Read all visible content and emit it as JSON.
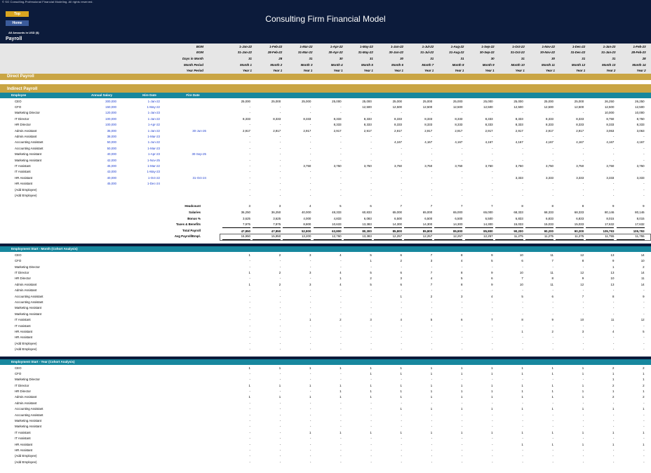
{
  "header": {
    "copyright": "© SG Consulting-Professional Financial Modeling. All rights reserved.",
    "top_button": "Top",
    "home_button": "Home",
    "title": "Consulting Firm Financial Model",
    "amounts_note": "All Amounts in  USD ($)"
  },
  "section_title": "Payroll",
  "timeline": {
    "row_labels": [
      "BOM",
      "EOM",
      "Days in Month",
      "Month Period",
      "Year Period"
    ],
    "bom": [
      "1-Jan-22",
      "1-Feb-22",
      "1-Mar-22",
      "1-Apr-22",
      "1-May-22",
      "1-Jun-22",
      "1-Jul-22",
      "1-Aug-22",
      "1-Sep-22",
      "1-Oct-22",
      "1-Nov-22",
      "1-Dec-22",
      "1-Jan-23",
      "1-Feb-23"
    ],
    "eom": [
      "31-Jan-22",
      "28-Feb-22",
      "31-Mar-22",
      "30-Apr-22",
      "31-May-22",
      "30-Jun-22",
      "31-Jul-22",
      "31-Aug-22",
      "30-Sep-22",
      "31-Oct-22",
      "30-Nov-22",
      "31-Dec-22",
      "31-Jan-23",
      "28-Feb-23"
    ],
    "days": [
      "31",
      "28",
      "31",
      "30",
      "31",
      "30",
      "31",
      "31",
      "30",
      "31",
      "30",
      "31",
      "31",
      "28"
    ],
    "month_period": [
      "Month 1",
      "Month 2",
      "Month 3",
      "Month 4",
      "Month 5",
      "Month 6",
      "Month 7",
      "Month 8",
      "Month 9",
      "Month 10",
      "Month 11",
      "Month 12",
      "Month 13",
      "Month 14"
    ],
    "year_period": [
      "Year 1",
      "Year 1",
      "Year 1",
      "Year 1",
      "Year 1",
      "Year 1",
      "Year 1",
      "Year 1",
      "Year 1",
      "Year 1",
      "Year 1",
      "Year 1",
      "Year 2",
      "Year 2"
    ]
  },
  "direct_payroll_label": "Direct Payroll",
  "indirect_payroll_label": "Indirect Payroll",
  "columns": {
    "employee": "Employee",
    "salary": "Annual Salary",
    "hire": "Hire Date",
    "fire": "Fire Date"
  },
  "employees": [
    {
      "name": "CEO",
      "salary": "300,000",
      "hire": "1-Jan-22",
      "fire": "",
      "values": [
        "25,000",
        "25,000",
        "25,000",
        "25,000",
        "25,000",
        "25,000",
        "25,000",
        "25,000",
        "25,000",
        "25,000",
        "25,000",
        "25,000",
        "26,250",
        "26,250"
      ]
    },
    {
      "name": "CFO",
      "salary": "150,000",
      "hire": "1-May-22",
      "fire": "",
      "values": [
        "-",
        "-",
        "-",
        "-",
        "12,500",
        "12,500",
        "12,500",
        "12,500",
        "12,500",
        "12,500",
        "12,500",
        "12,500",
        "12,500",
        "12,500"
      ]
    },
    {
      "name": "Marketing Director",
      "salary": "120,000",
      "hire": "1-Jan-23",
      "fire": "",
      "values": [
        "-",
        "-",
        "-",
        "-",
        "-",
        "-",
        "-",
        "-",
        "-",
        "-",
        "-",
        "-",
        "10,000",
        "10,000"
      ]
    },
    {
      "name": "IT Director",
      "salary": "100,000",
      "hire": "1-Jan-22",
      "fire": "",
      "values": [
        "8,333",
        "8,333",
        "8,333",
        "8,333",
        "8,333",
        "8,333",
        "8,333",
        "8,333",
        "8,333",
        "8,333",
        "8,333",
        "8,333",
        "8,750",
        "8,750"
      ]
    },
    {
      "name": "HR Director",
      "salary": "100,000",
      "hire": "1-Apr-22",
      "fire": "",
      "values": [
        "-",
        "-",
        "-",
        "8,333",
        "8,333",
        "8,333",
        "8,333",
        "8,333",
        "8,333",
        "8,333",
        "8,333",
        "8,333",
        "8,333",
        "8,333"
      ]
    },
    {
      "name": "Admin Assistant",
      "salary": "35,000",
      "hire": "1-Jan-22",
      "fire": "30-Jun-26",
      "values": [
        "2,917",
        "2,917",
        "2,917",
        "2,917",
        "2,917",
        "2,917",
        "2,917",
        "2,917",
        "2,917",
        "2,917",
        "2,917",
        "2,917",
        "3,063",
        "3,063"
      ]
    },
    {
      "name": "Admin Assistant",
      "salary": "38,000",
      "hire": "1-Mar-23",
      "fire": "",
      "values": [
        "-",
        "-",
        "-",
        "-",
        "-",
        "-",
        "-",
        "-",
        "-",
        "-",
        "-",
        "-",
        "-",
        "-"
      ]
    },
    {
      "name": "Accounting Assistant",
      "salary": "50,000",
      "hire": "1-Jun-22",
      "fire": "",
      "values": [
        "-",
        "-",
        "-",
        "-",
        "-",
        "4,167",
        "4,167",
        "4,167",
        "4,167",
        "4,167",
        "4,167",
        "4,167",
        "4,167",
        "4,167"
      ]
    },
    {
      "name": "Accounting Assistant",
      "salary": "50,000",
      "hire": "1-Mar-23",
      "fire": "",
      "values": [
        "-",
        "-",
        "-",
        "-",
        "-",
        "-",
        "-",
        "-",
        "-",
        "-",
        "-",
        "-",
        "-",
        "-"
      ]
    },
    {
      "name": "Marketing Assistant",
      "salary": "40,000",
      "hire": "1-Apr-23",
      "fire": "30-Sep-25",
      "values": [
        "-",
        "-",
        "-",
        "-",
        "-",
        "-",
        "-",
        "-",
        "-",
        "-",
        "-",
        "-",
        "-",
        "-"
      ]
    },
    {
      "name": "Marketing Assistant",
      "salary": "42,000",
      "hire": "1-Nov-25",
      "fire": "",
      "values": [
        "-",
        "-",
        "-",
        "-",
        "-",
        "-",
        "-",
        "-",
        "-",
        "-",
        "-",
        "-",
        "-",
        "-"
      ]
    },
    {
      "name": "IT Assistant",
      "salary": "45,000",
      "hire": "1-Mar-22",
      "fire": "",
      "values": [
        "-",
        "-",
        "3,750",
        "3,750",
        "3,750",
        "3,750",
        "3,750",
        "3,750",
        "3,750",
        "3,750",
        "3,750",
        "3,750",
        "3,750",
        "3,750"
      ]
    },
    {
      "name": "IT Assistant",
      "salary": "43,000",
      "hire": "1-May-23",
      "fire": "",
      "values": [
        "-",
        "-",
        "-",
        "-",
        "-",
        "-",
        "-",
        "-",
        "-",
        "-",
        "-",
        "-",
        "-",
        "-"
      ]
    },
    {
      "name": "HR Assistant",
      "salary": "40,000",
      "hire": "1-Oct-22",
      "fire": "31-Oct-24",
      "values": [
        "-",
        "-",
        "-",
        "-",
        "-",
        "-",
        "-",
        "-",
        "-",
        "3,333",
        "3,333",
        "3,333",
        "3,333",
        "3,333"
      ]
    },
    {
      "name": "HR Assistant",
      "salary": "45,000",
      "hire": "1-Dec-24",
      "fire": "",
      "values": [
        "-",
        "-",
        "-",
        "-",
        "-",
        "-",
        "-",
        "-",
        "-",
        "-",
        "-",
        "-",
        "-",
        "-"
      ]
    },
    {
      "name": "(Add Employee)",
      "salary": "",
      "hire": "",
      "fire": "",
      "values": [
        "-",
        "-",
        "-",
        "-",
        "-",
        "-",
        "-",
        "-",
        "-",
        "-",
        "-",
        "-",
        "-",
        "-"
      ]
    },
    {
      "name": "(Add Employee)",
      "salary": "",
      "hire": "",
      "fire": "",
      "values": [
        "-",
        "-",
        "-",
        "-",
        "-",
        "-",
        "-",
        "-",
        "-",
        "-",
        "-",
        "-",
        "-",
        "-"
      ]
    }
  ],
  "summary": [
    {
      "label": "Headcount",
      "values": [
        "3",
        "3",
        "4",
        "5",
        "6",
        "7",
        "7",
        "7",
        "7",
        "8",
        "8",
        "8",
        "9",
        "9"
      ]
    },
    {
      "label": "Salaries",
      "values": [
        "36,250",
        "36,250",
        "40,000",
        "48,333",
        "60,833",
        "65,000",
        "65,000",
        "65,000",
        "65,000",
        "68,333",
        "68,333",
        "68,333",
        "80,146",
        "80,146"
      ]
    },
    {
      "label": "Bonus %",
      "values": [
        "3,625",
        "3,625",
        "4,000",
        "4,833",
        "6,083",
        "6,500",
        "6,500",
        "6,500",
        "6,500",
        "6,833",
        "6,833",
        "6,833",
        "8,015",
        "8,015"
      ]
    },
    {
      "label": "Taxes & Benefits",
      "values": [
        "7,975",
        "7,975",
        "8,800",
        "10,633",
        "13,383",
        "14,300",
        "14,300",
        "14,300",
        "14,300",
        "15,033",
        "15,033",
        "15,033",
        "17,632",
        "17,632"
      ]
    },
    {
      "label": "Total Payroll",
      "values": [
        "47,850",
        "47,850",
        "52,800",
        "63,800",
        "80,300",
        "85,800",
        "85,800",
        "85,800",
        "85,800",
        "90,200",
        "90,200",
        "90,200",
        "105,793",
        "105,793"
      ]
    },
    {
      "label": "Avg Payroll/Empl.",
      "values": [
        "15,950",
        "15,950",
        "13,200",
        "12,760",
        "13,383",
        "12,257",
        "12,257",
        "12,257",
        "12,257",
        "11,275",
        "11,275",
        "11,275",
        "11,755",
        "11,755"
      ]
    }
  ],
  "cohort_month_title": "Employment Start - Month (Cohort Analysis)",
  "cohort_month": [
    [
      "1",
      "2",
      "3",
      "4",
      "5",
      "6",
      "7",
      "8",
      "9",
      "10",
      "11",
      "12",
      "13",
      "14"
    ],
    [
      "-",
      "-",
      "-",
      "-",
      "1",
      "2",
      "3",
      "4",
      "5",
      "6",
      "7",
      "8",
      "9",
      "10"
    ],
    [
      "-",
      "-",
      "-",
      "-",
      "-",
      "-",
      "-",
      "-",
      "-",
      "-",
      "-",
      "-",
      "1",
      "2"
    ],
    [
      "1",
      "2",
      "3",
      "4",
      "5",
      "6",
      "7",
      "8",
      "9",
      "10",
      "11",
      "12",
      "13",
      "14"
    ],
    [
      "-",
      "-",
      "-",
      "1",
      "2",
      "3",
      "4",
      "5",
      "6",
      "7",
      "8",
      "9",
      "10",
      "11"
    ],
    [
      "1",
      "2",
      "3",
      "4",
      "5",
      "6",
      "7",
      "8",
      "9",
      "10",
      "11",
      "12",
      "13",
      "14"
    ],
    [
      "-",
      "-",
      "-",
      "-",
      "-",
      "-",
      "-",
      "-",
      "-",
      "-",
      "-",
      "-",
      "-",
      "-"
    ],
    [
      "-",
      "-",
      "-",
      "-",
      "-",
      "1",
      "2",
      "3",
      "4",
      "5",
      "6",
      "7",
      "8",
      "9"
    ],
    [
      "-",
      "-",
      "-",
      "-",
      "-",
      "-",
      "-",
      "-",
      "-",
      "-",
      "-",
      "-",
      "-",
      "-"
    ],
    [
      "-",
      "-",
      "-",
      "-",
      "-",
      "-",
      "-",
      "-",
      "-",
      "-",
      "-",
      "-",
      "-",
      "-"
    ],
    [
      "-",
      "-",
      "-",
      "-",
      "-",
      "-",
      "-",
      "-",
      "-",
      "-",
      "-",
      "-",
      "-",
      "-"
    ],
    [
      "-",
      "-",
      "1",
      "2",
      "3",
      "4",
      "5",
      "6",
      "7",
      "8",
      "9",
      "10",
      "11",
      "12"
    ],
    [
      "-",
      "-",
      "-",
      "-",
      "-",
      "-",
      "-",
      "-",
      "-",
      "-",
      "-",
      "-",
      "-",
      "-"
    ],
    [
      "-",
      "-",
      "-",
      "-",
      "-",
      "-",
      "-",
      "-",
      "-",
      "1",
      "2",
      "3",
      "4",
      "5"
    ],
    [
      "-",
      "-",
      "-",
      "-",
      "-",
      "-",
      "-",
      "-",
      "-",
      "-",
      "-",
      "-",
      "-",
      "-"
    ],
    [
      "-",
      "-",
      "-",
      "-",
      "-",
      "-",
      "-",
      "-",
      "-",
      "-",
      "-",
      "-",
      "-",
      "-"
    ],
    [
      "-",
      "-",
      "-",
      "-",
      "-",
      "-",
      "-",
      "-",
      "-",
      "-",
      "-",
      "-",
      "-",
      "-"
    ]
  ],
  "cohort_year_title": "Employment Start - Year (Cohort Analysis)",
  "cohort_year": [
    [
      "1",
      "1",
      "1",
      "1",
      "1",
      "1",
      "1",
      "1",
      "1",
      "1",
      "1",
      "1",
      "2",
      "2"
    ],
    [
      "-",
      "-",
      "-",
      "-",
      "1",
      "1",
      "1",
      "1",
      "1",
      "1",
      "1",
      "1",
      "1",
      "1"
    ],
    [
      "-",
      "-",
      "-",
      "-",
      "-",
      "-",
      "-",
      "-",
      "-",
      "-",
      "-",
      "-",
      "1",
      "1"
    ],
    [
      "1",
      "1",
      "1",
      "1",
      "1",
      "1",
      "1",
      "1",
      "1",
      "1",
      "1",
      "1",
      "2",
      "2"
    ],
    [
      "-",
      "-",
      "-",
      "1",
      "1",
      "1",
      "1",
      "1",
      "1",
      "1",
      "1",
      "1",
      "1",
      "1"
    ],
    [
      "1",
      "1",
      "1",
      "1",
      "1",
      "1",
      "1",
      "1",
      "1",
      "1",
      "1",
      "1",
      "2",
      "2"
    ],
    [
      "-",
      "-",
      "-",
      "-",
      "-",
      "-",
      "-",
      "-",
      "-",
      "-",
      "-",
      "-",
      "-",
      "-"
    ],
    [
      "-",
      "-",
      "-",
      "-",
      "-",
      "1",
      "1",
      "1",
      "1",
      "1",
      "1",
      "1",
      "1",
      "1"
    ],
    [
      "-",
      "-",
      "-",
      "-",
      "-",
      "-",
      "-",
      "-",
      "-",
      "-",
      "-",
      "-",
      "-",
      "-"
    ],
    [
      "-",
      "-",
      "-",
      "-",
      "-",
      "-",
      "-",
      "-",
      "-",
      "-",
      "-",
      "-",
      "-",
      "-"
    ],
    [
      "-",
      "-",
      "-",
      "-",
      "-",
      "-",
      "-",
      "-",
      "-",
      "-",
      "-",
      "-",
      "-",
      "-"
    ],
    [
      "-",
      "-",
      "1",
      "1",
      "1",
      "1",
      "1",
      "1",
      "1",
      "1",
      "1",
      "1",
      "1",
      "1"
    ],
    [
      "-",
      "-",
      "-",
      "-",
      "-",
      "-",
      "-",
      "-",
      "-",
      "-",
      "-",
      "-",
      "-",
      "-"
    ],
    [
      "-",
      "-",
      "-",
      "-",
      "-",
      "-",
      "-",
      "-",
      "-",
      "1",
      "1",
      "1",
      "1",
      "1"
    ],
    [
      "-",
      "-",
      "-",
      "-",
      "-",
      "-",
      "-",
      "-",
      "-",
      "-",
      "-",
      "-",
      "-",
      "-"
    ],
    [
      "-",
      "-",
      "-",
      "-",
      "-",
      "-",
      "-",
      "-",
      "-",
      "-",
      "-",
      "-",
      "-",
      "-"
    ],
    [
      "-",
      "-",
      "-",
      "-",
      "-",
      "-",
      "-",
      "-",
      "-",
      "-",
      "-",
      "-",
      "-",
      "-"
    ]
  ]
}
